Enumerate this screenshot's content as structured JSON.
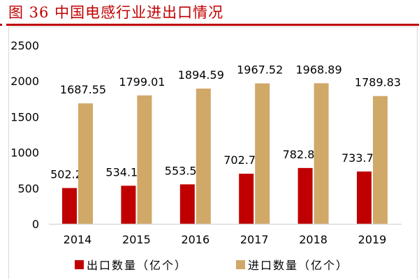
{
  "title": "图 36 中国电感行业进出口情况",
  "colors": {
    "title": "#c00000",
    "export": "#c00000",
    "import": "#d0a868",
    "rule": "#c00000"
  },
  "chart_data": {
    "type": "bar",
    "categories": [
      "2014",
      "2015",
      "2016",
      "2017",
      "2018",
      "2019"
    ],
    "series": [
      {
        "name": "出口数量（亿个）",
        "values": [
          502.2,
          534.18,
          553.58,
          702.72,
          782.81,
          733.78
        ],
        "labels": [
          "502.2",
          "534.18",
          "553.58",
          "702.72",
          "782.81",
          "733.78"
        ]
      },
      {
        "name": "进口数量（亿个）",
        "values": [
          1687.55,
          1799.01,
          1894.59,
          1967.52,
          1968.89,
          1789.83
        ],
        "labels": [
          "1687.55",
          "1799.01",
          "1894.59",
          "1967.52",
          "1968.89",
          "1789.83"
        ]
      }
    ],
    "yticks": [
      "0",
      "500",
      "1000",
      "1500",
      "2000",
      "2500"
    ],
    "ylim": [
      0,
      2500
    ],
    "grid": false,
    "legend": "bottom"
  }
}
